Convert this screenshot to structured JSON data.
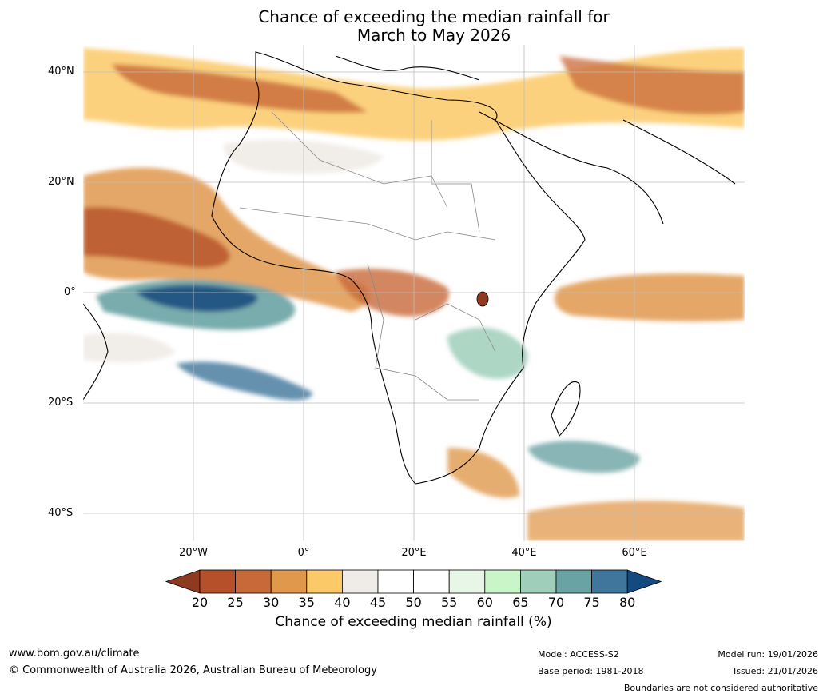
{
  "title_line_1": "Chance of exceeding the median rainfall for",
  "title_line_2": "March to May 2026",
  "latitude_labels": [
    "40°N",
    "20°N",
    "0°",
    "20°S",
    "40°S"
  ],
  "longitude_labels": [
    "20°W",
    "0°",
    "20°E",
    "40°E",
    "60°E"
  ],
  "colorbar": {
    "ticks": [
      "20",
      "25",
      "30",
      "35",
      "40",
      "45",
      "50",
      "55",
      "60",
      "65",
      "70",
      "75",
      "80"
    ],
    "colors": [
      "#b5502b",
      "#c8693a",
      "#e0984d",
      "#fbc968",
      "#efebe6",
      "#ffffff",
      "#ffffff",
      "#e8f6e8",
      "#c9f5c9",
      "#9fcfbb",
      "#6aa3a4",
      "#40769b"
    ],
    "low_extend_color": "#8e3a21",
    "high_extend_color": "#154a7e",
    "label": "Chance of exceeding median rainfall (%)"
  },
  "footer": {
    "website": "www.bom.gov.au/climate",
    "copyright": "© Commonwealth of Australia 2026, Australian Bureau of Meteorology",
    "model": "Model: ACCESS-S2",
    "base_period": "Base period: 1981-2018",
    "model_run": "Model run: 19/01/2026",
    "issued": "Issued: 21/01/2026",
    "disclaimer": "Boundaries are not considered authoritative"
  }
}
